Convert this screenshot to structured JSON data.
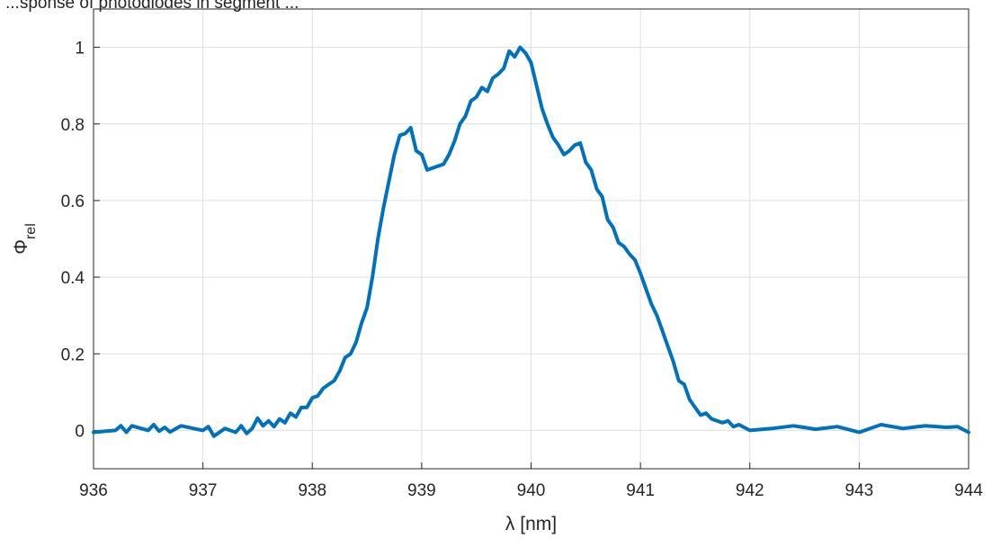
{
  "chart_data": {
    "type": "line",
    "title": "...sponse of photodiodes in segment ...",
    "xlabel": "λ [nm]",
    "ylabel_main": "Φ",
    "ylabel_sub": "rel",
    "xlim": [
      936,
      944
    ],
    "ylim": [
      -0.1,
      1.1
    ],
    "xticks": [
      936,
      937,
      938,
      939,
      940,
      941,
      942,
      943,
      944
    ],
    "yticks": [
      0,
      0.2,
      0.4,
      0.6,
      0.8,
      1
    ],
    "grid": true,
    "line_color": "#0072BD",
    "series": [
      {
        "x": [
          936.0,
          936.2,
          936.25,
          936.3,
          936.35,
          936.5,
          936.55,
          936.6,
          936.65,
          936.7,
          936.8,
          937.0,
          937.05,
          937.1,
          937.2,
          937.3,
          937.35,
          937.4,
          937.45,
          937.5,
          937.55,
          937.6,
          937.65,
          937.7,
          937.75,
          937.8,
          937.85,
          937.9,
          937.95,
          938.0,
          938.05,
          938.1,
          938.15,
          938.2,
          938.25,
          938.3,
          938.35,
          938.4,
          938.45,
          938.5,
          938.55,
          938.6,
          938.65,
          938.7,
          938.75,
          938.8,
          938.85,
          938.9,
          938.95,
          939.0,
          939.05,
          939.1,
          939.15,
          939.2,
          939.25,
          939.3,
          939.35,
          939.4,
          939.45,
          939.5,
          939.55,
          939.6,
          939.65,
          939.7,
          939.75,
          939.8,
          939.85,
          939.9,
          939.95,
          940.0,
          940.05,
          940.1,
          940.15,
          940.2,
          940.25,
          940.3,
          940.35,
          940.4,
          940.45,
          940.5,
          940.55,
          940.6,
          940.65,
          940.7,
          940.75,
          940.8,
          940.85,
          940.9,
          940.95,
          941.0,
          941.05,
          941.1,
          941.15,
          941.2,
          941.25,
          941.3,
          941.35,
          941.4,
          941.45,
          941.5,
          941.55,
          941.6,
          941.65,
          941.7,
          941.75,
          941.8,
          941.85,
          941.9,
          942.0,
          942.2,
          942.4,
          942.6,
          942.8,
          943.0,
          943.2,
          943.4,
          943.6,
          943.8,
          943.9,
          944.0
        ],
        "y": [
          -0.005,
          0.0,
          0.012,
          -0.005,
          0.012,
          0.0,
          0.015,
          -0.002,
          0.008,
          -0.004,
          0.012,
          0.0,
          0.01,
          -0.015,
          0.005,
          -0.005,
          0.012,
          -0.008,
          0.005,
          0.032,
          0.012,
          0.025,
          0.01,
          0.03,
          0.02,
          0.045,
          0.035,
          0.06,
          0.06,
          0.085,
          0.09,
          0.11,
          0.12,
          0.13,
          0.155,
          0.19,
          0.2,
          0.23,
          0.28,
          0.32,
          0.4,
          0.5,
          0.58,
          0.65,
          0.72,
          0.77,
          0.775,
          0.79,
          0.73,
          0.72,
          0.68,
          0.685,
          0.69,
          0.695,
          0.72,
          0.755,
          0.8,
          0.82,
          0.86,
          0.87,
          0.895,
          0.885,
          0.92,
          0.93,
          0.945,
          0.99,
          0.975,
          1.0,
          0.985,
          0.96,
          0.9,
          0.84,
          0.8,
          0.765,
          0.745,
          0.72,
          0.73,
          0.745,
          0.75,
          0.7,
          0.68,
          0.63,
          0.61,
          0.55,
          0.53,
          0.49,
          0.48,
          0.46,
          0.445,
          0.41,
          0.37,
          0.33,
          0.3,
          0.26,
          0.22,
          0.18,
          0.13,
          0.12,
          0.08,
          0.06,
          0.04,
          0.045,
          0.03,
          0.025,
          0.02,
          0.025,
          0.01,
          0.015,
          0.0,
          0.005,
          0.012,
          0.003,
          0.01,
          -0.005,
          0.015,
          0.005,
          0.012,
          0.008,
          0.01,
          -0.005
        ]
      }
    ]
  }
}
